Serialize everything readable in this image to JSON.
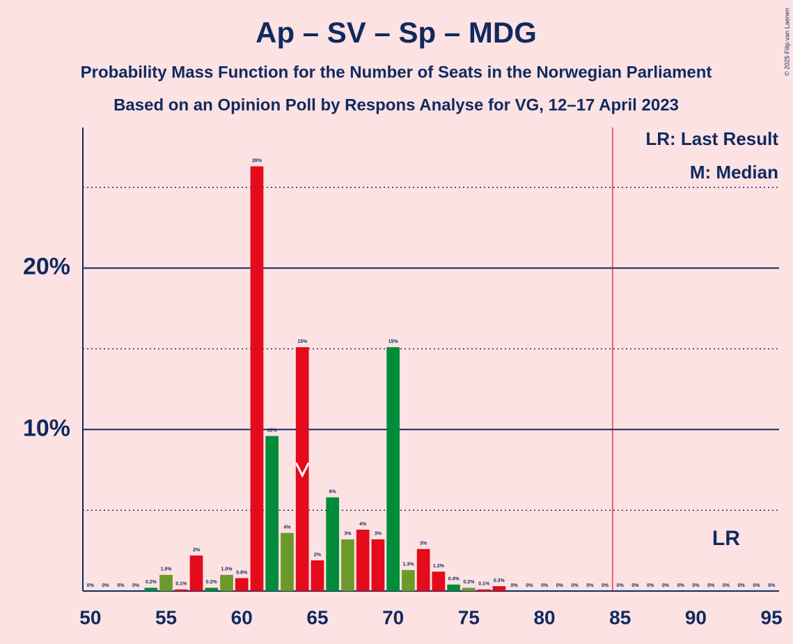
{
  "chart_data": {
    "type": "bar",
    "title": "Ap – SV – Sp – MDG",
    "subtitle": "Probability Mass Function for the Number of Seats in the Norwegian Parliament",
    "subtitle2": "Based on an Opinion Poll by Respons Analyse for VG, 12–17 April 2023",
    "copyright": "© 2025 Filip van Laenen",
    "legend": [
      "LR: Last Result",
      "M: Median"
    ],
    "x": [
      50,
      51,
      52,
      53,
      54,
      55,
      56,
      57,
      58,
      59,
      60,
      61,
      62,
      63,
      64,
      65,
      66,
      67,
      68,
      69,
      70,
      71,
      72,
      73,
      74,
      75,
      76,
      77,
      78,
      79,
      80,
      81,
      82,
      83,
      84,
      85,
      86,
      87,
      88,
      89,
      90,
      91,
      92,
      93,
      94,
      95
    ],
    "values": [
      0,
      0,
      0,
      0,
      0.2,
      1.0,
      0.1,
      2.2,
      0.2,
      1.0,
      0.8,
      26.3,
      9.6,
      3.6,
      15.1,
      1.9,
      5.8,
      3.2,
      3.8,
      3.2,
      15.1,
      1.3,
      2.6,
      1.2,
      0.4,
      0.2,
      0.1,
      0.3,
      0,
      0,
      0,
      0,
      0,
      0,
      0,
      0,
      0,
      0,
      0,
      0,
      0,
      0,
      0,
      0,
      0,
      0
    ],
    "value_labels": [
      "0%",
      "0%",
      "0%",
      "0%",
      "0.2%",
      "1.0%",
      "0.1%",
      "2%",
      "0.2%",
      "1.0%",
      "0.8%",
      "26%",
      "10%",
      "4%",
      "15%",
      "2%",
      "6%",
      "3%",
      "4%",
      "3%",
      "15%",
      "1.3%",
      "3%",
      "1.2%",
      "0.4%",
      "0.2%",
      "0.1%",
      "0.3%",
      "0%",
      "0%",
      "0%",
      "0%",
      "0%",
      "0%",
      "0%",
      "0%",
      "0%",
      "0%",
      "0%",
      "0%",
      "0%",
      "0%",
      "0%",
      "0%",
      "0%",
      "0%"
    ],
    "colors": [
      "#008c3a",
      "#6b9a2a",
      "#e30b1c",
      "#e30b1c",
      "#008c3a",
      "#6b9a2a",
      "#e30b1c",
      "#e30b1c",
      "#008c3a",
      "#6b9a2a",
      "#e30b1c",
      "#e30b1c",
      "#008c3a",
      "#6b9a2a",
      "#e30b1c",
      "#e30b1c",
      "#008c3a",
      "#6b9a2a",
      "#e30b1c",
      "#e30b1c",
      "#008c3a",
      "#6b9a2a",
      "#e30b1c",
      "#e30b1c",
      "#008c3a",
      "#6b9a2a",
      "#e30b1c",
      "#e30b1c",
      "#008c3a",
      "#6b9a2a",
      "#e30b1c",
      "#e30b1c",
      "#008c3a",
      "#6b9a2a",
      "#e30b1c",
      "#e30b1c",
      "#008c3a",
      "#6b9a2a",
      "#e30b1c",
      "#e30b1c",
      "#008c3a",
      "#6b9a2a",
      "#e30b1c",
      "#e30b1c",
      "#008c3a",
      "#6b9a2a"
    ],
    "xlim": [
      49.5,
      95.5
    ],
    "xticks": [
      50,
      55,
      60,
      65,
      70,
      75,
      80,
      85,
      90,
      95
    ],
    "ylim": [
      0,
      28.7
    ],
    "yticks": [
      {
        "value": 10,
        "label": "10%"
      },
      {
        "value": 20,
        "label": "20%"
      }
    ],
    "minor_yticks": [
      5,
      15,
      25
    ],
    "grid": true,
    "majority_line": 84.5,
    "median": 64,
    "last_result": 92,
    "last_result_label": "LR"
  }
}
